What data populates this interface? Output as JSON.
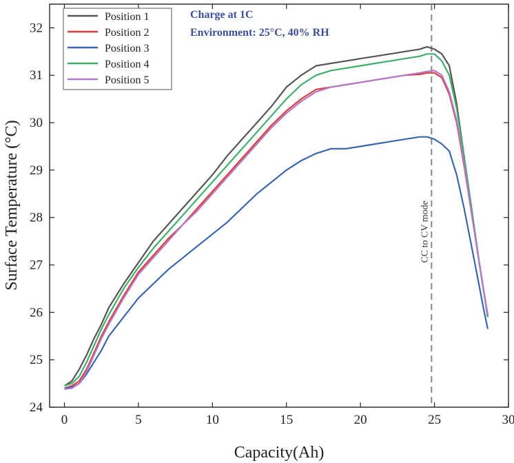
{
  "chart_data": {
    "type": "line",
    "title": "",
    "xlabel": "Capacity(Ah)",
    "ylabel": "Surface Temperature (°C)",
    "xlim": [
      -1,
      30
    ],
    "ylim": [
      24,
      32.5
    ],
    "xticks": [
      0,
      5,
      10,
      15,
      20,
      25,
      30
    ],
    "yticks": [
      24,
      25,
      26,
      27,
      28,
      29,
      30,
      31,
      32
    ],
    "grid": false,
    "legend_position": "top-left",
    "annotations": [
      {
        "text": "Charge at 1C",
        "color": "#3b4f9a"
      },
      {
        "text": "Environment: 25°C, 40% RH",
        "color": "#3b4f9a"
      }
    ],
    "vertical_line": {
      "x": 24.8,
      "label": "CC to CV mode",
      "style": "dashed",
      "color": "#888888"
    },
    "series": [
      {
        "name": "Position 1",
        "color": "#555555",
        "x": [
          0,
          0.5,
          1,
          1.5,
          2,
          2.5,
          3,
          4,
          5,
          6,
          7,
          8,
          9,
          10,
          11,
          12,
          13,
          14,
          15,
          16,
          17,
          18,
          19,
          20,
          21,
          22,
          23,
          24,
          24.5,
          25,
          25.5,
          26,
          26.5,
          27,
          27.5,
          28,
          28.3,
          28.6
        ],
        "y": [
          24.45,
          24.55,
          24.8,
          25.1,
          25.45,
          25.75,
          26.1,
          26.6,
          27.05,
          27.5,
          27.85,
          28.2,
          28.55,
          28.9,
          29.3,
          29.65,
          30.0,
          30.35,
          30.75,
          31.0,
          31.2,
          31.25,
          31.3,
          31.35,
          31.4,
          31.45,
          31.5,
          31.55,
          31.6,
          31.55,
          31.45,
          31.2,
          30.4,
          29.3,
          28.2,
          27.1,
          26.5,
          25.9
        ]
      },
      {
        "name": "Position 2",
        "color": "#e03a3a",
        "x": [
          0,
          0.5,
          1,
          1.5,
          2,
          2.5,
          3,
          4,
          5,
          6,
          7,
          8,
          9,
          10,
          11,
          12,
          13,
          14,
          15,
          16,
          17,
          18,
          19,
          20,
          21,
          22,
          23,
          24,
          24.5,
          25,
          25.5,
          26,
          26.5,
          27,
          27.5,
          28,
          28.3,
          28.6
        ],
        "y": [
          24.4,
          24.45,
          24.55,
          24.8,
          25.15,
          25.5,
          25.8,
          26.35,
          26.85,
          27.2,
          27.55,
          27.85,
          28.2,
          28.55,
          28.9,
          29.25,
          29.6,
          29.95,
          30.25,
          30.5,
          30.7,
          30.75,
          30.8,
          30.85,
          30.9,
          30.95,
          31.0,
          31.02,
          31.05,
          31.05,
          30.95,
          30.6,
          30.0,
          29.1,
          28.1,
          27.1,
          26.5,
          25.95
        ]
      },
      {
        "name": "Position 3",
        "color": "#3a66b0",
        "x": [
          0,
          0.5,
          1,
          1.5,
          2,
          2.5,
          3,
          4,
          5,
          6,
          7,
          8,
          9,
          10,
          11,
          12,
          13,
          14,
          15,
          16,
          17,
          18,
          19,
          20,
          21,
          22,
          23,
          24,
          24.5,
          25,
          25.5,
          26,
          26.5,
          27,
          27.5,
          28,
          28.3,
          28.6
        ],
        "y": [
          24.4,
          24.42,
          24.5,
          24.7,
          24.95,
          25.2,
          25.5,
          25.9,
          26.3,
          26.6,
          26.9,
          27.15,
          27.4,
          27.65,
          27.9,
          28.2,
          28.5,
          28.75,
          29.0,
          29.2,
          29.35,
          29.45,
          29.45,
          29.5,
          29.55,
          29.6,
          29.65,
          29.7,
          29.7,
          29.65,
          29.55,
          29.4,
          28.9,
          28.2,
          27.4,
          26.6,
          26.1,
          25.65
        ]
      },
      {
        "name": "Position 4",
        "color": "#3fae6a",
        "x": [
          0,
          0.5,
          1,
          1.5,
          2,
          2.5,
          3,
          4,
          5,
          6,
          7,
          8,
          9,
          10,
          11,
          12,
          13,
          14,
          15,
          16,
          17,
          18,
          19,
          20,
          21,
          22,
          23,
          24,
          24.5,
          25,
          25.5,
          26,
          26.5,
          27,
          27.5,
          28,
          28.3,
          28.6
        ],
        "y": [
          24.45,
          24.5,
          24.65,
          24.95,
          25.3,
          25.65,
          25.95,
          26.5,
          26.95,
          27.35,
          27.7,
          28.05,
          28.4,
          28.75,
          29.1,
          29.45,
          29.8,
          30.15,
          30.5,
          30.8,
          31.0,
          31.1,
          31.15,
          31.2,
          31.25,
          31.3,
          31.35,
          31.4,
          31.45,
          31.45,
          31.3,
          31.0,
          30.3,
          29.3,
          28.2,
          27.1,
          26.5,
          25.9
        ]
      },
      {
        "name": "Position 5",
        "color": "#b07ac8",
        "x": [
          0,
          0.5,
          1,
          1.5,
          2,
          2.5,
          3,
          4,
          5,
          6,
          7,
          8,
          9,
          10,
          11,
          12,
          13,
          14,
          15,
          16,
          17,
          18,
          19,
          20,
          21,
          22,
          23,
          24,
          24.5,
          25,
          25.5,
          26,
          26.5,
          27,
          27.5,
          28,
          28.3,
          28.6
        ],
        "y": [
          24.38,
          24.4,
          24.5,
          24.75,
          25.1,
          25.45,
          25.75,
          26.3,
          26.8,
          27.15,
          27.5,
          27.85,
          28.15,
          28.5,
          28.85,
          29.2,
          29.55,
          29.9,
          30.2,
          30.45,
          30.65,
          30.75,
          30.8,
          30.85,
          30.9,
          30.95,
          31.0,
          31.05,
          31.08,
          31.1,
          31.0,
          30.65,
          30.05,
          29.15,
          28.1,
          27.1,
          26.5,
          25.95
        ]
      }
    ]
  }
}
